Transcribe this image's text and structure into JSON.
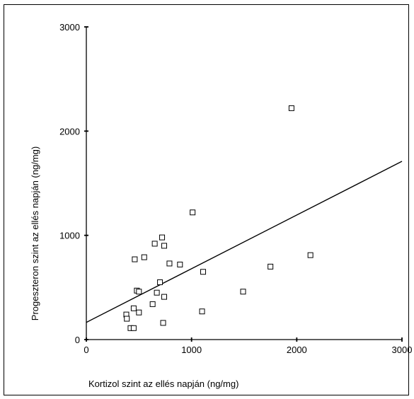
{
  "chart_data": {
    "type": "scatter",
    "xlabel": "Kortizol szint az ellés napján (ng/mg)",
    "ylabel": "Progeszteron szint az ellés napján (ng/mg)",
    "xlim": [
      0,
      3000
    ],
    "ylim": [
      0,
      3000
    ],
    "xticks": [
      "0",
      "1000",
      "2000",
      "3000"
    ],
    "yticks": [
      "0",
      "1000",
      "2000",
      "3000"
    ],
    "grid": false,
    "marker": "open-square",
    "points": [
      {
        "x": 380,
        "y": 240
      },
      {
        "x": 385,
        "y": 200
      },
      {
        "x": 420,
        "y": 110
      },
      {
        "x": 450,
        "y": 110
      },
      {
        "x": 450,
        "y": 300
      },
      {
        "x": 460,
        "y": 770
      },
      {
        "x": 480,
        "y": 470
      },
      {
        "x": 500,
        "y": 460
      },
      {
        "x": 500,
        "y": 260
      },
      {
        "x": 550,
        "y": 790
      },
      {
        "x": 630,
        "y": 340
      },
      {
        "x": 650,
        "y": 920
      },
      {
        "x": 670,
        "y": 450
      },
      {
        "x": 700,
        "y": 550
      },
      {
        "x": 720,
        "y": 980
      },
      {
        "x": 730,
        "y": 160
      },
      {
        "x": 740,
        "y": 900
      },
      {
        "x": 740,
        "y": 410
      },
      {
        "x": 790,
        "y": 730
      },
      {
        "x": 890,
        "y": 720
      },
      {
        "x": 1010,
        "y": 1220
      },
      {
        "x": 1100,
        "y": 270
      },
      {
        "x": 1110,
        "y": 650
      },
      {
        "x": 1490,
        "y": 460
      },
      {
        "x": 1750,
        "y": 700
      },
      {
        "x": 1950,
        "y": 2220
      },
      {
        "x": 2130,
        "y": 810
      }
    ],
    "fit_line": {
      "x": [
        0,
        3000
      ],
      "y": [
        165,
        1710
      ]
    }
  }
}
